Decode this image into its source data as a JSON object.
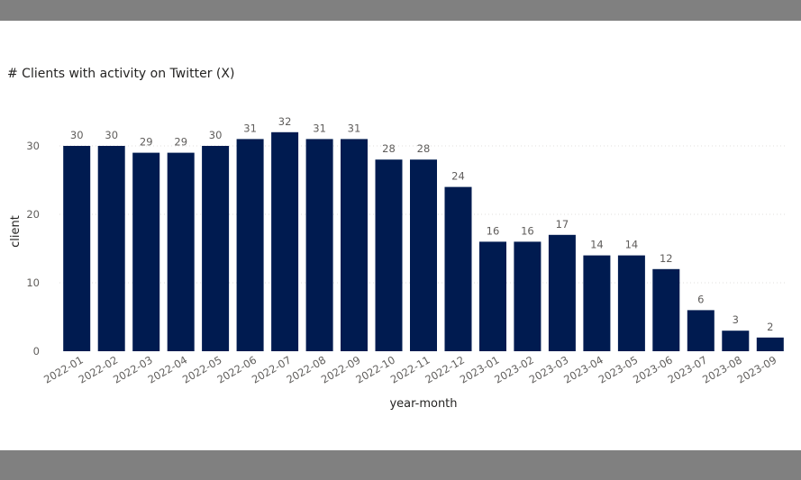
{
  "colors": {
    "frame": "#808080",
    "bar": "#001b50",
    "gridline": "#e1dfdd"
  },
  "chart_data": {
    "type": "bar",
    "title": "# Clients with activity on Twitter (X)",
    "xlabel": "year-month",
    "ylabel": "client",
    "ylim": [
      0,
      35
    ],
    "yticks": [
      0,
      10,
      20,
      30
    ],
    "grid": true,
    "categories": [
      "2022-01",
      "2022-02",
      "2022-03",
      "2022-04",
      "2022-05",
      "2022-06",
      "2022-07",
      "2022-08",
      "2022-09",
      "2022-10",
      "2022-11",
      "2022-12",
      "2023-01",
      "2023-02",
      "2023-03",
      "2023-04",
      "2023-05",
      "2023-06",
      "2023-07",
      "2023-08",
      "2023-09"
    ],
    "values": [
      30,
      30,
      29,
      29,
      30,
      31,
      32,
      31,
      31,
      28,
      28,
      24,
      16,
      16,
      17,
      14,
      14,
      12,
      6,
      3,
      2
    ]
  }
}
